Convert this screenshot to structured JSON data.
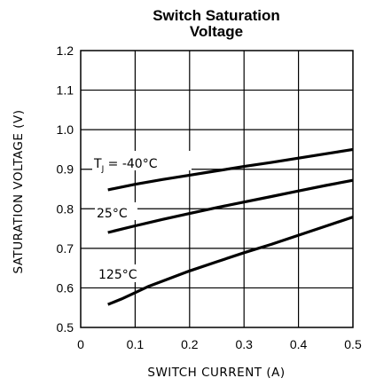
{
  "chart_data": {
    "type": "line",
    "title_lines": [
      "Switch Saturation",
      "Voltage"
    ],
    "xlabel": "SWITCH CURRENT (A)",
    "ylabel": "SATURATION VOLTAGE (V)",
    "xlim": [
      0,
      0.5
    ],
    "ylim": [
      0.5,
      1.2
    ],
    "x_ticks": [
      "0",
      "0.1",
      "0.2",
      "0.3",
      "0.4",
      "0.5"
    ],
    "y_ticks": [
      "0.5",
      "0.6",
      "0.7",
      "0.8",
      "0.9",
      "1.0",
      "1.1",
      "1.2"
    ],
    "grid": true,
    "series": [
      {
        "name": "T_J = -40°C",
        "label_main": "T",
        "label_sub": "J",
        "label_rest": " = -40°C",
        "x": [
          0.05,
          0.1,
          0.15,
          0.2,
          0.25,
          0.3,
          0.35,
          0.4,
          0.45,
          0.5
        ],
        "y": [
          0.848,
          0.862,
          0.874,
          0.885,
          0.896,
          0.907,
          0.917,
          0.928,
          0.939,
          0.95
        ]
      },
      {
        "name": "25°C",
        "label_main": "25°C",
        "x": [
          0.05,
          0.1,
          0.15,
          0.2,
          0.25,
          0.3,
          0.35,
          0.4,
          0.45,
          0.5
        ],
        "y": [
          0.74,
          0.757,
          0.773,
          0.788,
          0.803,
          0.817,
          0.831,
          0.845,
          0.859,
          0.872
        ]
      },
      {
        "name": "125°C",
        "label_main": "125°C",
        "x": [
          0.05,
          0.075,
          0.1,
          0.125,
          0.15,
          0.2,
          0.25,
          0.3,
          0.35,
          0.4,
          0.45,
          0.5
        ],
        "y": [
          0.558,
          0.572,
          0.588,
          0.604,
          0.617,
          0.643,
          0.666,
          0.689,
          0.71,
          0.733,
          0.756,
          0.779
        ]
      }
    ]
  }
}
